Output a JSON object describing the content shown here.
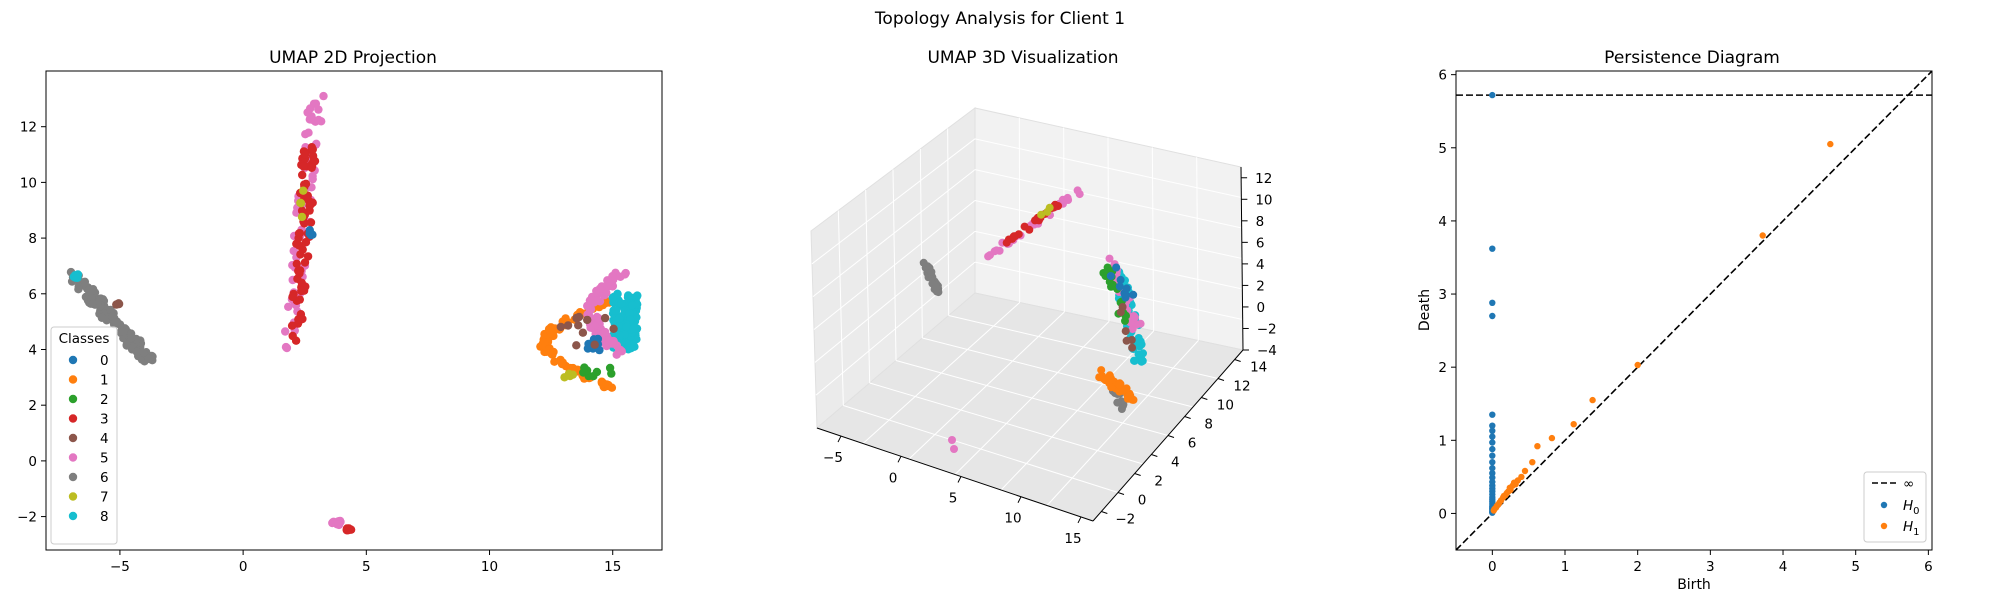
{
  "figure": {
    "suptitle": "Topology Analysis for Client 1"
  },
  "panels": {
    "umap2d": {
      "title": "UMAP 2D Projection",
      "xticks": [
        "−5",
        "0",
        "5",
        "10",
        "15"
      ],
      "yticks": [
        "−2",
        "0",
        "2",
        "4",
        "6",
        "8",
        "10",
        "12"
      ],
      "legend_title": "Classes"
    },
    "umap3d": {
      "title": "UMAP 3D Visualization",
      "xticks": [
        "−5",
        "0",
        "5",
        "10",
        "15"
      ],
      "yticks": [
        "−2",
        "0",
        "2",
        "4",
        "6",
        "8",
        "10",
        "12",
        "14"
      ],
      "zticks": [
        "−4",
        "−2",
        "0",
        "2",
        "4",
        "6",
        "8",
        "10",
        "12"
      ]
    },
    "persistence": {
      "title": "Persistence Diagram",
      "xlabel": "Birth",
      "ylabel": "Death",
      "xticks": [
        "0",
        "1",
        "2",
        "3",
        "4",
        "5",
        "6"
      ],
      "yticks": [
        "0",
        "1",
        "2",
        "3",
        "4",
        "5",
        "6"
      ],
      "legend": {
        "inf": "∞",
        "h0": "H",
        "h0_sub": "0",
        "h1": "H",
        "h1_sub": "1"
      }
    }
  },
  "class_colors": [
    "#1f77b4",
    "#ff7f0e",
    "#2ca02c",
    "#d62728",
    "#8c564b",
    "#e377c2",
    "#7f7f7f",
    "#bcbd22",
    "#17becf"
  ],
  "classes": [
    "0",
    "1",
    "2",
    "3",
    "4",
    "5",
    "6",
    "7",
    "8"
  ],
  "chart_data": [
    {
      "type": "scatter",
      "title": "UMAP 2D Projection",
      "xlim": [
        -8,
        17
      ],
      "ylim": [
        -3.2,
        14
      ],
      "legend": {
        "title": "Classes",
        "placement": "lower-left"
      },
      "clusters": [
        {
          "class": 6,
          "label": "6",
          "x_range": [
            -6.8,
            -3.8
          ],
          "y_range": [
            3.6,
            6.6
          ],
          "shape": "diagonal arm"
        },
        {
          "class": 8,
          "label": "8",
          "x_range": [
            -6.9,
            -6.7
          ],
          "y_range": [
            6.5,
            6.7
          ],
          "shape": "tip"
        },
        {
          "class": 4,
          "label": "4",
          "x_range": [
            -5.2,
            -5.0
          ],
          "y_range": [
            5.6,
            5.8
          ],
          "shape": "few points"
        },
        {
          "class": 5,
          "label": "5",
          "x_range": [
            1.5,
            3.8
          ],
          "y_range": [
            4.0,
            13.2
          ],
          "shape": "vertical arm"
        },
        {
          "class": 3,
          "label": "3",
          "x_range": [
            2.0,
            3.1
          ],
          "y_range": [
            4.3,
            11.4
          ],
          "shape": "vertical arm"
        },
        {
          "class": 0,
          "label": "0",
          "x_range": [
            2.7,
            2.9
          ],
          "y_range": [
            8.1,
            8.3
          ],
          "shape": "few points"
        },
        {
          "class": 7,
          "label": "7",
          "x_range": [
            2.3,
            3.1
          ],
          "y_range": [
            6.8,
            11.0
          ],
          "shape": "few points"
        },
        {
          "class": 5,
          "label": "5",
          "x_range": [
            3.6,
            4.0
          ],
          "y_range": [
            -2.3,
            -2.1
          ],
          "shape": "small blob"
        },
        {
          "class": 3,
          "label": "3",
          "x_range": [
            4.2,
            4.4
          ],
          "y_range": [
            -2.5,
            -2.4
          ],
          "shape": "small blob"
        },
        {
          "class": 1,
          "label": "1",
          "x_range": [
            11.5,
            15.4
          ],
          "y_range": [
            2.6,
            5.8
          ],
          "shape": "arc"
        },
        {
          "class": 8,
          "label": "8",
          "x_range": [
            15.0,
            16.0
          ],
          "y_range": [
            4.0,
            6.0
          ],
          "shape": "dense blob"
        },
        {
          "class": 5,
          "label": "5",
          "x_range": [
            13.8,
            15.6
          ],
          "y_range": [
            3.8,
            6.8
          ],
          "shape": "arc"
        },
        {
          "class": 2,
          "label": "2",
          "x_range": [
            13.8,
            15.0
          ],
          "y_range": [
            3.0,
            3.4
          ],
          "shape": "small blob"
        },
        {
          "class": 0,
          "label": "0",
          "x_range": [
            13.9,
            14.5
          ],
          "y_range": [
            3.8,
            4.4
          ],
          "shape": "small blob"
        },
        {
          "class": 4,
          "label": "4",
          "x_range": [
            12.8,
            15.4
          ],
          "y_range": [
            4.0,
            5.2
          ],
          "shape": "scattered"
        },
        {
          "class": 7,
          "label": "7",
          "x_range": [
            13.0,
            13.4
          ],
          "y_range": [
            2.9,
            3.3
          ],
          "shape": "few points"
        }
      ]
    },
    {
      "type": "scatter",
      "title": "UMAP 3D Visualization",
      "xlim": [
        -7,
        16
      ],
      "ylim": [
        -3,
        15
      ],
      "zlim": [
        -4,
        13
      ],
      "clusters": [
        {
          "class": 6,
          "label": "6",
          "description": "small vertical group at left"
        },
        {
          "class": 5,
          "label": "5",
          "description": "diagonal arm rising to the upper right"
        },
        {
          "class": 3,
          "label": "3",
          "description": "diagonal arm mixed with class 5"
        },
        {
          "class": 8,
          "label": "8",
          "description": "dense vertical structure at right"
        },
        {
          "class": 2,
          "label": "2",
          "description": "mixed into right structure"
        },
        {
          "class": 1,
          "label": "1",
          "description": "lower part of right structure"
        },
        {
          "class": 5,
          "label": "5",
          "description": "isolated pair at bottom"
        }
      ]
    },
    {
      "type": "scatter",
      "title": "Persistence Diagram",
      "xlabel": "Birth",
      "ylabel": "Death",
      "xlim": [
        -0.5,
        6.05
      ],
      "ylim": [
        -0.5,
        6.05
      ],
      "infinity_line": 5.72,
      "diagonal": true,
      "legend": {
        "placement": "lower-right",
        "entries": [
          "∞",
          "H0",
          "H1"
        ]
      },
      "series": [
        {
          "name": "H0",
          "color": "#1f77b4",
          "points": [
            [
              0,
              5.72
            ],
            [
              0,
              3.62
            ],
            [
              0,
              2.88
            ],
            [
              0,
              2.7
            ],
            [
              0,
              1.35
            ],
            [
              0,
              1.2
            ],
            [
              0,
              1.13
            ],
            [
              0,
              1.05
            ],
            [
              0,
              0.97
            ],
            [
              0,
              0.88
            ],
            [
              0,
              0.79
            ],
            [
              0,
              0.7
            ],
            [
              0,
              0.62
            ],
            [
              0,
              0.55
            ],
            [
              0,
              0.49
            ],
            [
              0,
              0.43
            ],
            [
              0,
              0.38
            ],
            [
              0,
              0.34
            ],
            [
              0,
              0.3
            ],
            [
              0,
              0.26
            ],
            [
              0,
              0.22
            ],
            [
              0,
              0.19
            ],
            [
              0,
              0.16
            ],
            [
              0,
              0.13
            ],
            [
              0,
              0.1
            ],
            [
              0,
              0.08
            ],
            [
              0,
              0.06
            ],
            [
              0,
              0.04
            ],
            [
              0,
              0.02
            ],
            [
              0,
              0.01
            ]
          ]
        },
        {
          "name": "H1",
          "color": "#ff7f0e",
          "points": [
            [
              4.65,
              5.05
            ],
            [
              3.72,
              3.8
            ],
            [
              2.0,
              2.03
            ],
            [
              1.38,
              1.55
            ],
            [
              1.12,
              1.22
            ],
            [
              0.82,
              1.03
            ],
            [
              0.62,
              0.92
            ],
            [
              0.55,
              0.7
            ],
            [
              0.45,
              0.58
            ],
            [
              0.4,
              0.5
            ],
            [
              0.35,
              0.45
            ],
            [
              0.3,
              0.42
            ],
            [
              0.28,
              0.38
            ],
            [
              0.25,
              0.32
            ],
            [
              0.22,
              0.3
            ],
            [
              0.2,
              0.28
            ],
            [
              0.18,
              0.25
            ],
            [
              0.15,
              0.22
            ],
            [
              0.12,
              0.18
            ],
            [
              0.1,
              0.15
            ],
            [
              0.08,
              0.12
            ],
            [
              0.06,
              0.1
            ],
            [
              0.05,
              0.08
            ],
            [
              0.03,
              0.06
            ],
            [
              0.02,
              0.04
            ],
            [
              0.32,
              0.4
            ],
            [
              0.16,
              0.24
            ],
            [
              0.24,
              0.35
            ]
          ]
        }
      ]
    }
  ]
}
